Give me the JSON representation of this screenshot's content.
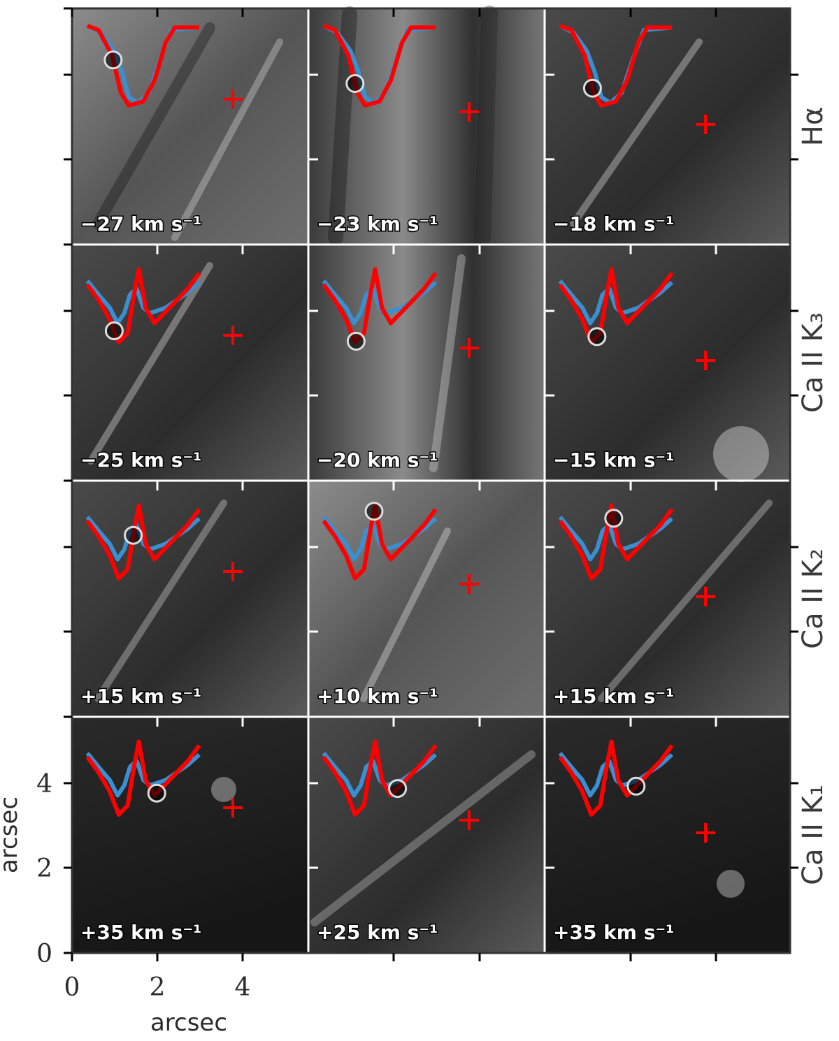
{
  "rows": [
    {
      "label": "Hα",
      "panels": [
        {
          "velocity": "−27 km s⁻¹",
          "marker_frac": 0.23
        },
        {
          "velocity": "−23 km s⁻¹",
          "marker_frac": 0.28
        },
        {
          "velocity": "−18 km s⁻¹",
          "marker_frac": 0.29
        }
      ]
    },
    {
      "label": "Ca II K₃",
      "panels": [
        {
          "velocity": "−25 km s⁻¹",
          "marker_frac": 0.24
        },
        {
          "velocity": "−20 km s⁻¹",
          "marker_frac": 0.29
        },
        {
          "velocity": "−15 km s⁻¹",
          "marker_frac": 0.33
        }
      ]
    },
    {
      "label": "Ca II K₂",
      "panels": [
        {
          "velocity": "+15 km s⁻¹",
          "marker_frac": 0.41
        },
        {
          "velocity": "+10 km s⁻¹",
          "marker_frac": 0.45
        },
        {
          "velocity": "+15 km s⁻¹",
          "marker_frac": 0.48
        }
      ]
    },
    {
      "label": "Ca II K₁",
      "panels": [
        {
          "velocity": "+35 km s⁻¹",
          "marker_frac": 0.62
        },
        {
          "velocity": "+25 km s⁻¹",
          "marker_frac": 0.66
        },
        {
          "velocity": "+35 km s⁻¹",
          "marker_frac": 0.68
        }
      ]
    }
  ],
  "axes": {
    "x_label": "arcsec",
    "y_label": "arcsec",
    "x_ticks": [
      "0",
      "2",
      "4"
    ],
    "y_ticks": [
      "0",
      "2",
      "4"
    ]
  },
  "colors": {
    "profile_red": "#ff0000",
    "profile_blue": "#3a8fd0",
    "marker": "#ff0000"
  }
}
